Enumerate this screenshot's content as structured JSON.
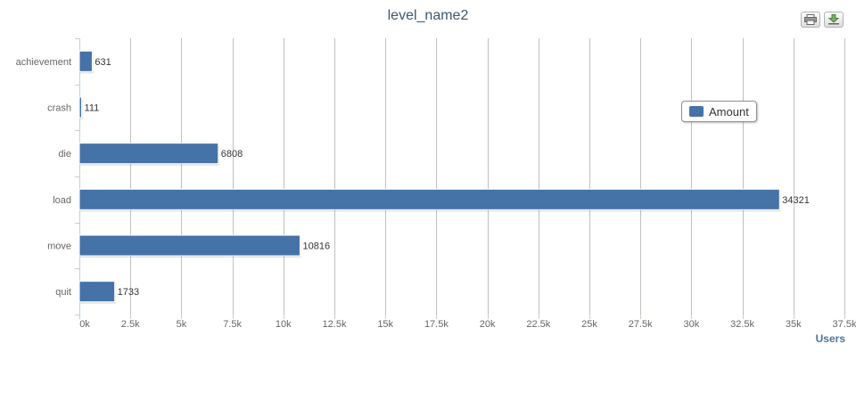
{
  "chart_data": {
    "type": "bar",
    "orientation": "horizontal",
    "title": "level_name2",
    "xlabel": "Users",
    "ylabel": "",
    "categories": [
      "achievement",
      "crash",
      "die",
      "load",
      "move",
      "quit"
    ],
    "series": [
      {
        "name": "Amount",
        "values": [
          631,
          111,
          6808,
          34321,
          10816,
          1733
        ],
        "color": "#4572a7"
      }
    ],
    "xlim": [
      0,
      37500
    ],
    "xticks": [
      0,
      2500,
      5000,
      7500,
      10000,
      12500,
      15000,
      17500,
      20000,
      22500,
      25000,
      27500,
      30000,
      32500,
      35000,
      37500
    ],
    "xtick_labels": [
      "0k",
      "2.5k",
      "5k",
      "7.5k",
      "10k",
      "12.5k",
      "15k",
      "17.5k",
      "20k",
      "22.5k",
      "25k",
      "27.5k",
      "30k",
      "32.5k",
      "35k",
      "37.5k"
    ],
    "grid": true,
    "data_labels": true,
    "legend_position": "top-right"
  },
  "toolbar": {
    "print_icon": "printer-icon",
    "export_icon": "download-icon"
  }
}
